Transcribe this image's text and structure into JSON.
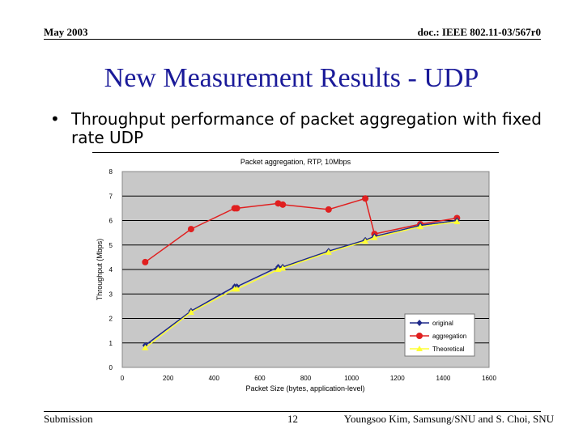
{
  "header": {
    "date": "May 2003",
    "doc": "doc.: IEEE 802.11-03/567r0"
  },
  "slide": {
    "title": "New Measurement Results - UDP",
    "bullet_symbol": "•",
    "bullet": "Throughput performance of packet aggregation with fixed rate UDP"
  },
  "footer": {
    "left": "Submission",
    "page": "12",
    "right": "Youngsoo Kim, Samsung/SNU and S. Choi, SNU"
  },
  "colors": {
    "title": "#1a1a99",
    "original": "#1f2a8a",
    "aggregation": "#e02020",
    "theoretical": "#ffff33",
    "plot_bg": "#c8c8c8"
  },
  "chart_data": {
    "type": "line",
    "title": "Packet aggregation, RTP, 10Mbps",
    "xlabel": "Packet Size (bytes, application-level)",
    "ylabel": "Throughput (Mbps)",
    "xlim": [
      0,
      1600
    ],
    "ylim": [
      0,
      8
    ],
    "xticks": [
      0,
      200,
      400,
      600,
      800,
      1000,
      1200,
      1400,
      1600
    ],
    "yticks": [
      0,
      1,
      2,
      3,
      4,
      5,
      6,
      7,
      8
    ],
    "grid": "horizontal",
    "legend": "bottom-right",
    "series": [
      {
        "name": "original",
        "marker": "diamond",
        "x": [
          100,
          300,
          490,
          500,
          680,
          700,
          900,
          1060,
          1100,
          1300,
          1460
        ],
        "y": [
          0.9,
          2.3,
          3.3,
          3.3,
          4.1,
          4.1,
          4.75,
          5.2,
          5.35,
          5.8,
          6.0
        ]
      },
      {
        "name": "aggregation",
        "marker": "circle",
        "x": [
          100,
          300,
          490,
          500,
          680,
          700,
          900,
          1060,
          1100,
          1300,
          1460
        ],
        "y": [
          4.3,
          5.65,
          6.5,
          6.5,
          6.7,
          6.65,
          6.45,
          6.9,
          5.45,
          5.85,
          6.1
        ]
      },
      {
        "name": "Theoretical",
        "marker": "triangle",
        "x": [
          100,
          300,
          490,
          500,
          680,
          700,
          900,
          1060,
          1100,
          1300,
          1460
        ],
        "y": [
          0.8,
          2.25,
          3.2,
          3.2,
          4.0,
          4.05,
          4.7,
          5.15,
          5.3,
          5.75,
          5.95
        ]
      }
    ]
  }
}
